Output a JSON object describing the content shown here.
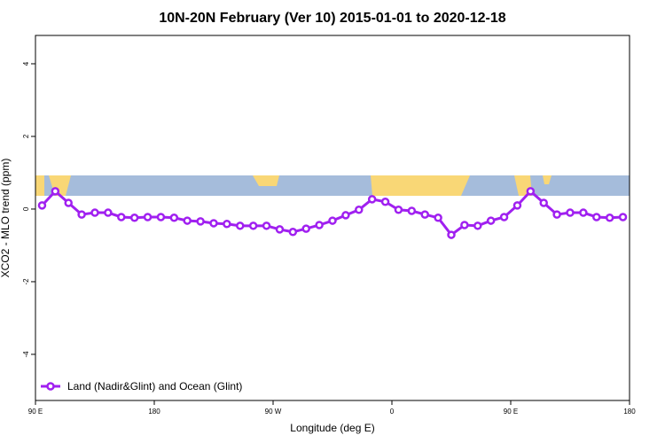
{
  "chart_data": {
    "type": "line",
    "title": "10N-20N February (Ver 10)   2015-01-01 to 2020-12-18",
    "xlabel": "Longitude (deg E)",
    "ylabel": "XCO2 - MLO trend (ppm)",
    "x": [
      95,
      105,
      115,
      125,
      135,
      145,
      155,
      165,
      175,
      185,
      195,
      205,
      215,
      225,
      235,
      245,
      255,
      265,
      275,
      285,
      295,
      305,
      315,
      325,
      335,
      345,
      355,
      365,
      375,
      385,
      395,
      405,
      415,
      425,
      435,
      445,
      455,
      465,
      475,
      485,
      495,
      505,
      515,
      525,
      535
    ],
    "series": [
      {
        "name": "Land (Nadir&Glint) and Ocean (Glint)",
        "color": "#a020f0",
        "values": [
          0.1,
          0.49,
          0.17,
          -0.15,
          -0.1,
          -0.1,
          -0.22,
          -0.24,
          -0.22,
          -0.22,
          -0.24,
          -0.32,
          -0.34,
          -0.39,
          -0.41,
          -0.46,
          -0.46,
          -0.46,
          -0.56,
          -0.63,
          -0.54,
          -0.44,
          -0.32,
          -0.17,
          -0.02,
          0.27,
          0.2,
          -0.02,
          -0.05,
          -0.15,
          -0.24,
          -0.71,
          -0.44,
          -0.46,
          -0.32,
          -0.22,
          0.1,
          0.49,
          0.17,
          -0.15,
          -0.1,
          -0.1,
          -0.22,
          -0.24,
          -0.22
        ]
      }
    ],
    "xlim": [
      90,
      540
    ],
    "xticks": [
      {
        "value": 90,
        "label": "90 E"
      },
      {
        "value": 180,
        "label": "180"
      },
      {
        "value": 270,
        "label": "90 W"
      },
      {
        "value": 360,
        "label": "0"
      },
      {
        "value": 450,
        "label": "90 E"
      },
      {
        "value": 540,
        "label": "180"
      }
    ],
    "ylim": [
      -5.27,
      4.78
    ],
    "yticks": [
      -4,
      -2,
      0,
      2,
      4
    ],
    "legend": "bottom-left"
  }
}
